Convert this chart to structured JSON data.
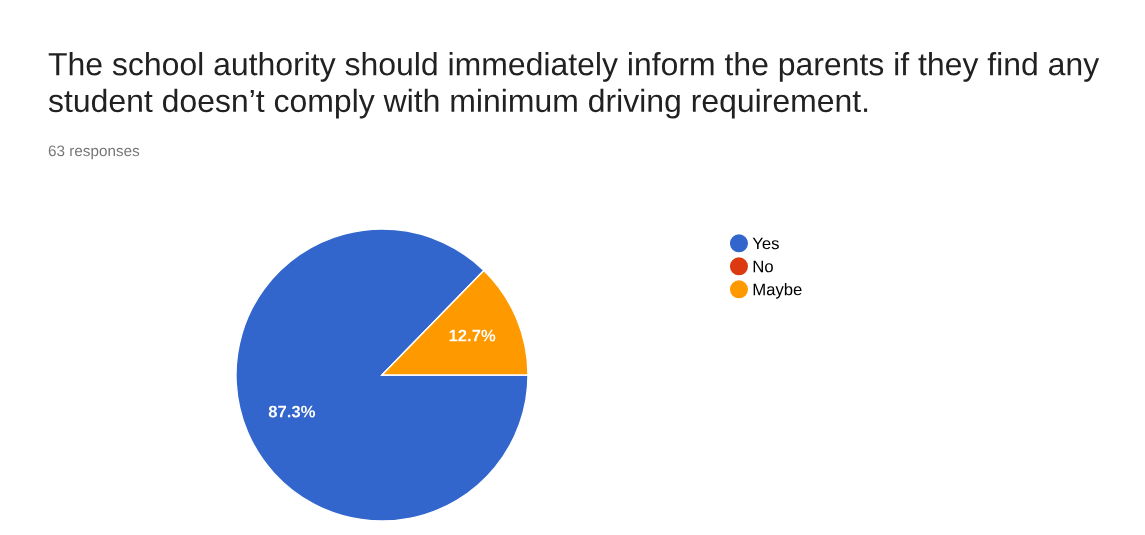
{
  "chart_data": {
    "type": "pie",
    "title": "The school authority should immediately inform the parents if they find any student doesn’t comply with minimum driving requirement.",
    "subtitle": "63 responses",
    "categories": [
      "Yes",
      "No",
      "Maybe"
    ],
    "values": [
      87.3,
      0,
      12.7
    ],
    "colors": [
      "#3366cc",
      "#dc3912",
      "#ff9900"
    ],
    "value_labels": [
      "87.3%",
      null,
      "12.7%"
    ],
    "legend": "right"
  }
}
